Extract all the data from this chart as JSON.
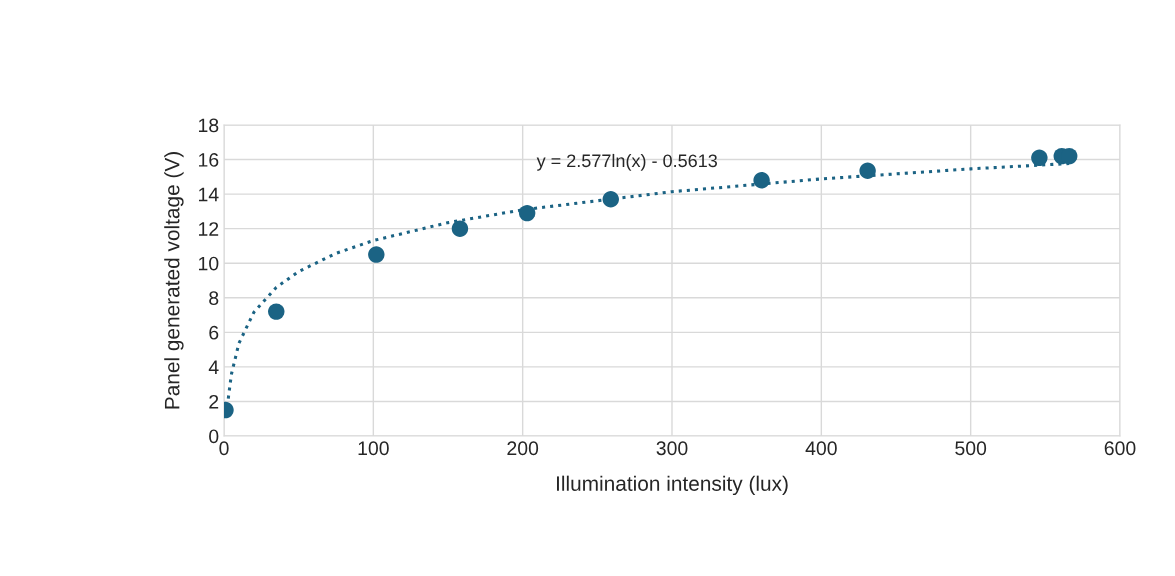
{
  "chart_data": {
    "type": "scatter",
    "xlabel": "Illumination intensity (lux)",
    "ylabel": "Panel generated voltage (V)",
    "xlim": [
      0,
      600
    ],
    "xticks": [
      0,
      100,
      200,
      300,
      400,
      500,
      600
    ],
    "ylim": [
      0,
      18
    ],
    "yticks": [
      0,
      2,
      4,
      6,
      8,
      10,
      12,
      14,
      16,
      18
    ],
    "grid": true,
    "legend": false,
    "annotations": [
      "y = 2.577ln(x) - 0.5613"
    ],
    "series": [
      {
        "color": "#1b6384",
        "marker": "circle",
        "x": [
          1,
          35,
          102,
          158,
          203,
          259,
          360,
          431,
          546,
          561,
          566
        ],
        "values": [
          1.5,
          7.2,
          10.5,
          12.0,
          12.9,
          13.7,
          14.8,
          15.35,
          16.1,
          16.2,
          16.2
        ]
      },
      {
        "type": "line",
        "color": "#1b6384",
        "line_style": "dotted",
        "marker": "none",
        "x": [
          2,
          3,
          5,
          10,
          20,
          35,
          50,
          75,
          100,
          150,
          200,
          300,
          400,
          500,
          566
        ],
        "values": [
          1.23,
          2.27,
          3.59,
          5.37,
          7.16,
          8.6,
          9.52,
          10.57,
          11.31,
          12.35,
          13.09,
          14.14,
          14.88,
          15.46,
          15.77
        ]
      }
    ]
  }
}
